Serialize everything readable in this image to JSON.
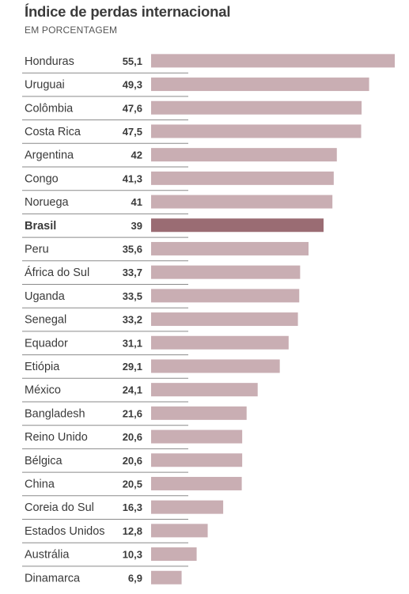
{
  "chart_data": {
    "type": "bar",
    "orientation": "horizontal",
    "title": "Índice de perdas internacional",
    "subtitle": "EM PORCENTAGEM",
    "categories": [
      "Honduras",
      "Uruguai",
      "Colômbia",
      "Costa Rica",
      "Argentina",
      "Congo",
      "Noruega",
      "Brasil",
      "Peru",
      "África do Sul",
      "Uganda",
      "Senegal",
      "Equador",
      "Etiópia",
      "México",
      "Bangladesh",
      "Reino Unido",
      "Bélgica",
      "China",
      "Coreia do Sul",
      "Estados Unidos",
      "Austrália",
      "Dinamarca"
    ],
    "values": [
      55.1,
      49.3,
      47.6,
      47.5,
      42,
      41.3,
      41,
      39,
      35.6,
      33.7,
      33.5,
      33.2,
      31.1,
      29.1,
      24.1,
      21.6,
      20.6,
      20.6,
      20.5,
      16.3,
      12.8,
      10.3,
      6.9
    ],
    "value_labels": [
      "55,1",
      "49,3",
      "47,6",
      "47,5",
      "42",
      "41,3",
      "41",
      "39",
      "35,6",
      "33,7",
      "33,5",
      "33,2",
      "31,1",
      "29,1",
      "24,1",
      "21,6",
      "20,6",
      "20,6",
      "20,5",
      "16,3",
      "12,8",
      "10,3",
      "6,9"
    ],
    "highlight": "Brasil",
    "colors": {
      "bar": "#c9aeb3",
      "highlight_bar": "#9a6c73",
      "separator": "#8a8a8a",
      "text": "#3a3a3a"
    },
    "grid": false,
    "legend": "none",
    "xlim": [
      0,
      55.1
    ]
  }
}
